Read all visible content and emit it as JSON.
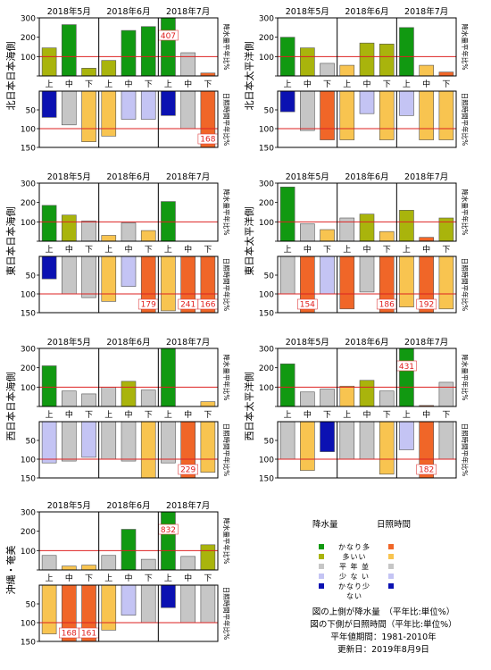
{
  "colors": {
    "kanari_ooi": "#119911",
    "ooi": "#a9b40c",
    "heinen": "#c6c6c6",
    "sukunai": "#c4c4f4",
    "kanari_sukunai": "#0b11b2",
    "sun_kanari_ooi": "#f06628",
    "sun_ooi": "#f8c450",
    "sun_sukunai": "#c4c4f4",
    "sun_kanari_sukunai": "#0b11b2"
  },
  "legend": {
    "rain_header": "降水量",
    "sun_header": "日照時間",
    "rows": [
      {
        "label": "かなり多い",
        "rain": "kanari_ooi",
        "sun": "sun_kanari_ooi"
      },
      {
        "label": "多　い",
        "rain": "ooi",
        "sun": "sun_ooi"
      },
      {
        "label": "平 年 並",
        "rain": "heinen",
        "sun": "heinen"
      },
      {
        "label": "少 な い",
        "rain": "sukunai",
        "sun": "sun_sukunai"
      },
      {
        "label": "かなり少ない",
        "rain": "kanari_sukunai",
        "sun": "sun_kanari_sukunai"
      }
    ],
    "notes": [
      "図の上側が降水量　（平年比:単位%）",
      "図の下側が日照時間（平年比:単位%）",
      "平年値期間：1981-2010年",
      "更新日：2019年8月9日"
    ]
  },
  "chart_data": [
    {
      "type": "bar",
      "region": "北日本日本海側",
      "months": [
        "2018年5月",
        "2018年6月",
        "2018年7月"
      ],
      "categories": [
        "上",
        "中",
        "下",
        "上",
        "中",
        "下",
        "上",
        "中",
        "下"
      ],
      "precip_axis_label": "降水量平年比%",
      "sun_axis_label": "日照時間平年比%",
      "precip_ticks": [
        100,
        200,
        300
      ],
      "sun_ticks": [
        50,
        100,
        150
      ],
      "precip": {
        "values": [
          145,
          265,
          40,
          80,
          235,
          255,
          407,
          120,
          15
        ],
        "classes": [
          "ooi",
          "kanari_ooi",
          "ooi",
          "ooi",
          "kanari_ooi",
          "kanari_ooi",
          "kanari_ooi",
          "heinen",
          "sun_kanari_ooi"
        ],
        "labels": [
          "",
          "",
          "",
          "",
          "",
          "",
          "407",
          "",
          ""
        ]
      },
      "sunshine": {
        "values": [
          70,
          90,
          135,
          120,
          75,
          75,
          65,
          100,
          168
        ],
        "classes": [
          "kanari_sukunai",
          "heinen",
          "sun_ooi",
          "sun_ooi",
          "sun_sukunai",
          "sun_sukunai",
          "kanari_sukunai",
          "heinen",
          "sun_kanari_ooi"
        ],
        "labels": [
          "",
          "",
          "",
          "",
          "",
          "",
          "",
          "",
          "168"
        ]
      }
    },
    {
      "type": "bar",
      "region": "北日本太平洋側",
      "months": [
        "2018年5月",
        "2018年6月",
        "2018年7月"
      ],
      "categories": [
        "上",
        "中",
        "下",
        "上",
        "中",
        "下",
        "上",
        "中",
        "下"
      ],
      "precip_axis_label": "降水量平年比%",
      "sun_axis_label": "日照時間平年比%",
      "precip_ticks": [
        100,
        200,
        300
      ],
      "sun_ticks": [
        50,
        100,
        150
      ],
      "precip": {
        "values": [
          200,
          145,
          65,
          55,
          170,
          165,
          250,
          55,
          20
        ],
        "classes": [
          "kanari_ooi",
          "ooi",
          "heinen",
          "sun_ooi",
          "ooi",
          "ooi",
          "kanari_ooi",
          "sun_ooi",
          "sun_kanari_ooi"
        ],
        "labels": [
          "",
          "",
          "",
          "",
          "",
          "",
          "",
          "",
          ""
        ]
      },
      "sunshine": {
        "values": [
          55,
          105,
          130,
          130,
          60,
          130,
          65,
          130,
          130
        ],
        "classes": [
          "kanari_sukunai",
          "heinen",
          "sun_kanari_ooi",
          "sun_ooi",
          "sun_sukunai",
          "sun_ooi",
          "sun_sukunai",
          "sun_ooi",
          "sun_ooi"
        ],
        "labels": [
          "",
          "",
          "",
          "",
          "",
          "",
          "",
          "",
          ""
        ]
      }
    },
    {
      "type": "bar",
      "region": "東日本日本海側",
      "months": [
        "2018年5月",
        "2018年6月",
        "2018年7月"
      ],
      "categories": [
        "上",
        "中",
        "下",
        "上",
        "中",
        "下",
        "上",
        "中",
        "下"
      ],
      "precip_axis_label": "降水量平年比%",
      "sun_axis_label": "日照時間平年比%",
      "precip_ticks": [
        100,
        200,
        300
      ],
      "sun_ticks": [
        50,
        100,
        150
      ],
      "precip": {
        "values": [
          185,
          135,
          105,
          30,
          95,
          55,
          205,
          0,
          0
        ],
        "classes": [
          "kanari_ooi",
          "ooi",
          "heinen",
          "sun_ooi",
          "heinen",
          "sun_ooi",
          "kanari_ooi",
          "sun_kanari_ooi",
          "sun_kanari_ooi"
        ],
        "labels": [
          "",
          "",
          "",
          "",
          "",
          "",
          "",
          "",
          ""
        ]
      },
      "sunshine": {
        "values": [
          60,
          100,
          110,
          120,
          80,
          179,
          145,
          241,
          166
        ],
        "classes": [
          "kanari_sukunai",
          "heinen",
          "heinen",
          "sun_ooi",
          "sun_sukunai",
          "sun_kanari_ooi",
          "sun_ooi",
          "sun_kanari_ooi",
          "sun_kanari_ooi"
        ],
        "labels": [
          "",
          "",
          "",
          "",
          "",
          "179",
          "",
          "241",
          "166"
        ]
      }
    },
    {
      "type": "bar",
      "region": "東日本太平洋側",
      "months": [
        "2018年5月",
        "2018年6月",
        "2018年7月"
      ],
      "categories": [
        "上",
        "中",
        "下",
        "上",
        "中",
        "下",
        "上",
        "中",
        "下"
      ],
      "precip_axis_label": "降水量平年比%",
      "sun_axis_label": "日照時間平年比%",
      "precip_ticks": [
        100,
        200,
        300
      ],
      "sun_ticks": [
        50,
        100,
        150
      ],
      "precip": {
        "values": [
          280,
          90,
          60,
          120,
          140,
          50,
          160,
          20,
          120
        ],
        "classes": [
          "kanari_ooi",
          "heinen",
          "sun_ooi",
          "heinen",
          "ooi",
          "sun_ooi",
          "ooi",
          "sun_kanari_ooi",
          "ooi"
        ],
        "labels": [
          "",
          "",
          "",
          "",
          "",
          "",
          "",
          "",
          ""
        ]
      },
      "sunshine": {
        "values": [
          100,
          154,
          100,
          140,
          95,
          186,
          135,
          192,
          140
        ],
        "classes": [
          "heinen",
          "sun_kanari_ooi",
          "sun_sukunai",
          "sun_kanari_ooi",
          "heinen",
          "sun_kanari_ooi",
          "sun_ooi",
          "sun_kanari_ooi",
          "sun_ooi"
        ],
        "labels": [
          "",
          "154",
          "",
          "",
          "",
          "186",
          "",
          "192",
          ""
        ]
      }
    },
    {
      "type": "bar",
      "region": "西日本日本海側",
      "months": [
        "2018年5月",
        "2018年6月",
        "2018年7月"
      ],
      "categories": [
        "上",
        "中",
        "下",
        "上",
        "中",
        "下",
        "上",
        "中",
        "下"
      ],
      "precip_axis_label": "降水量平年比%",
      "sun_axis_label": "日照時間平年比%",
      "precip_ticks": [
        100,
        200,
        300
      ],
      "sun_ticks": [
        50,
        100,
        150
      ],
      "precip": {
        "values": [
          210,
          80,
          65,
          100,
          130,
          85,
          300,
          0,
          25
        ],
        "classes": [
          "kanari_ooi",
          "heinen",
          "heinen",
          "heinen",
          "ooi",
          "heinen",
          "kanari_ooi",
          "sun_kanari_ooi",
          "sun_ooi"
        ],
        "labels": [
          "",
          "",
          "",
          "",
          "",
          "",
          "",
          "",
          ""
        ]
      },
      "sunshine": {
        "values": [
          110,
          105,
          95,
          100,
          105,
          150,
          110,
          229,
          135
        ],
        "classes": [
          "sun_sukunai",
          "heinen",
          "sun_sukunai",
          "heinen",
          "heinen",
          "sun_ooi",
          "heinen",
          "sun_kanari_ooi",
          "sun_ooi"
        ],
        "labels": [
          "",
          "",
          "",
          "",
          "",
          "",
          "",
          "229",
          ""
        ]
      }
    },
    {
      "type": "bar",
      "region": "西日本太平洋側",
      "months": [
        "2018年5月",
        "2018年6月",
        "2018年7月"
      ],
      "categories": [
        "上",
        "中",
        "下",
        "上",
        "中",
        "下",
        "上",
        "中",
        "下"
      ],
      "precip_axis_label": "降水量平年比%",
      "sun_axis_label": "日照時間平年比%",
      "precip_ticks": [
        100,
        200,
        300
      ],
      "sun_ticks": [
        50,
        100,
        150
      ],
      "precip": {
        "values": [
          220,
          75,
          90,
          105,
          135,
          80,
          431,
          5,
          125
        ],
        "classes": [
          "kanari_ooi",
          "heinen",
          "heinen",
          "sun_ooi",
          "ooi",
          "heinen",
          "kanari_ooi",
          "sun_kanari_ooi",
          "heinen"
        ],
        "labels": [
          "",
          "",
          "",
          "",
          "",
          "",
          "431",
          "",
          ""
        ]
      },
      "sunshine": {
        "values": [
          100,
          130,
          80,
          100,
          100,
          140,
          75,
          182,
          100
        ],
        "classes": [
          "heinen",
          "sun_ooi",
          "kanari_sukunai",
          "heinen",
          "heinen",
          "sun_ooi",
          "sun_sukunai",
          "sun_kanari_ooi",
          "heinen"
        ],
        "labels": [
          "",
          "",
          "",
          "",
          "",
          "",
          "",
          "182",
          ""
        ]
      }
    },
    {
      "type": "bar",
      "region": "沖縄・奄美",
      "months": [
        "2018年5月",
        "2018年6月",
        "2018年7月"
      ],
      "categories": [
        "上",
        "中",
        "下",
        "上",
        "中",
        "下",
        "上",
        "中",
        "下"
      ],
      "precip_axis_label": "降水量平年比%",
      "sun_axis_label": "日照時間平年比%",
      "precip_ticks": [
        100,
        200,
        300
      ],
      "sun_ticks": [
        50,
        100,
        150
      ],
      "precip": {
        "values": [
          75,
          20,
          25,
          75,
          210,
          55,
          832,
          70,
          130
        ],
        "classes": [
          "heinen",
          "sun_ooi",
          "sun_ooi",
          "heinen",
          "kanari_ooi",
          "heinen",
          "kanari_ooi",
          "heinen",
          "ooi"
        ],
        "labels": [
          "",
          "",
          "",
          "",
          "",
          "",
          "832",
          "",
          ""
        ]
      },
      "sunshine": {
        "values": [
          130,
          168,
          161,
          120,
          80,
          100,
          60,
          100,
          100
        ],
        "classes": [
          "sun_ooi",
          "sun_kanari_ooi",
          "sun_kanari_ooi",
          "sun_ooi",
          "sun_sukunai",
          "heinen",
          "kanari_sukunai",
          "heinen",
          "heinen"
        ],
        "labels": [
          "",
          "168",
          "161",
          "",
          "",
          "",
          "",
          "",
          ""
        ]
      }
    }
  ]
}
